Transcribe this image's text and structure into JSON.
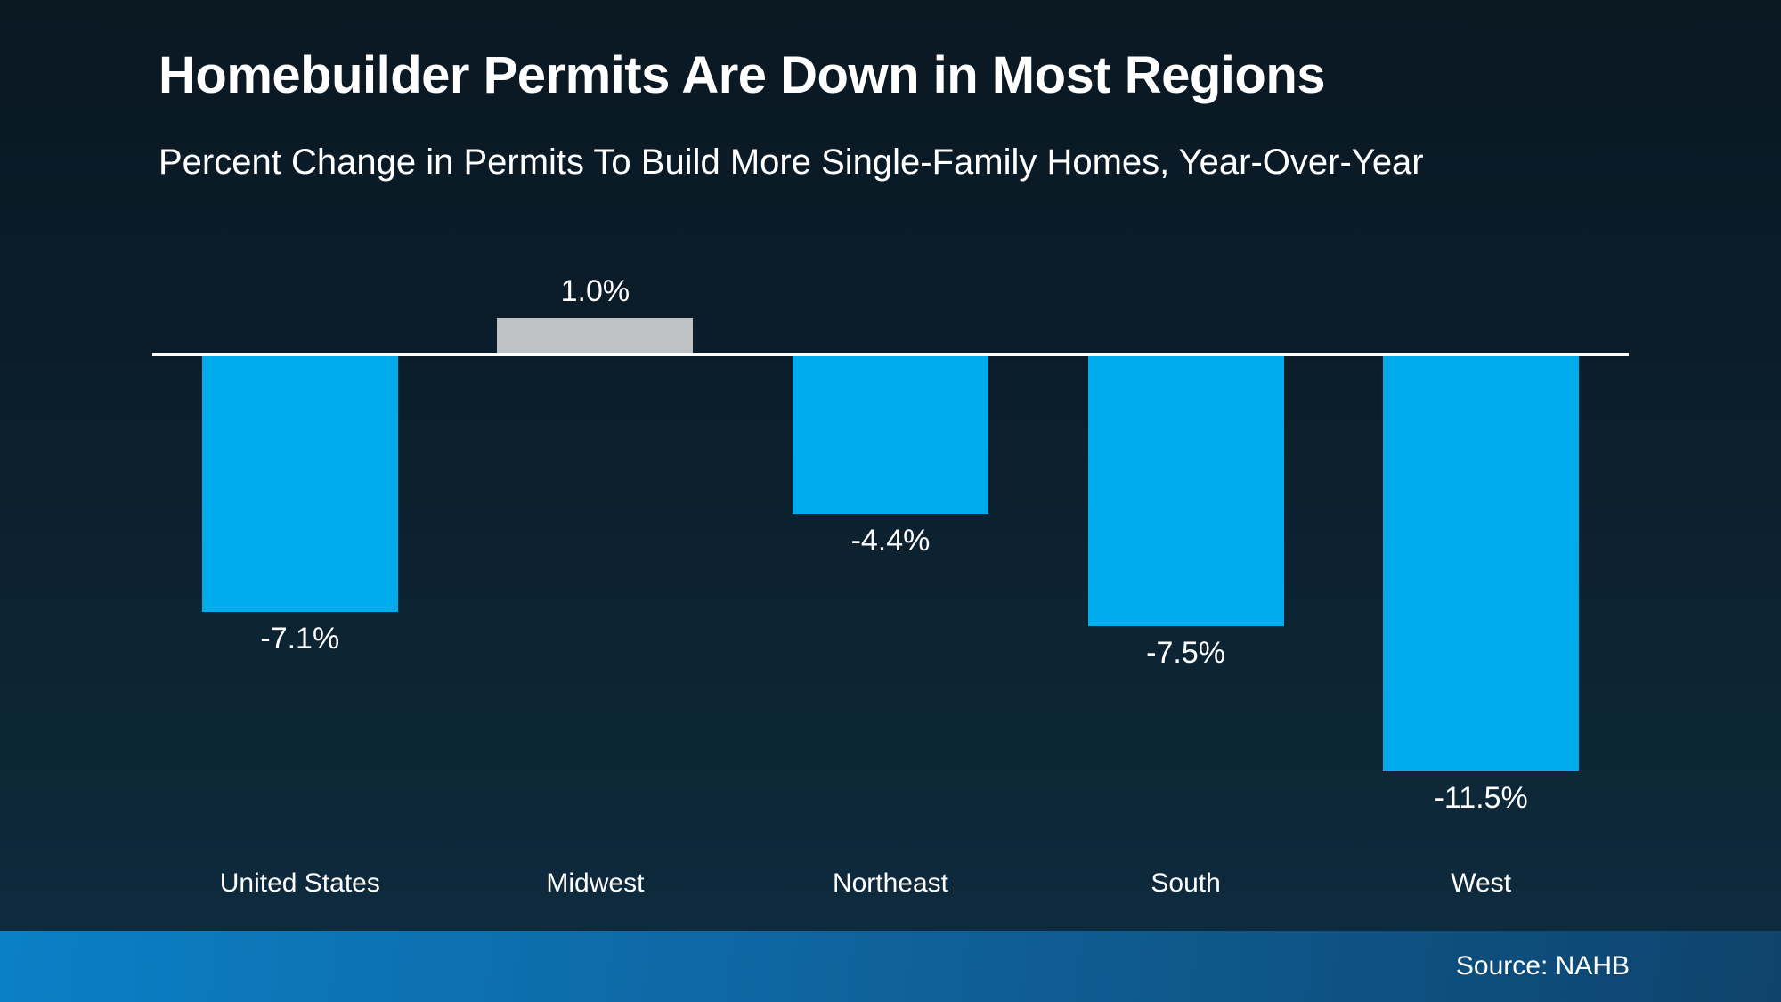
{
  "header": {
    "title": "Homebuilder Permits Are Down in Most Regions",
    "subtitle": "Percent Change in Permits To Build More Single-Family Homes, Year-Over-Year"
  },
  "footer": {
    "source_label": "Source: NAHB"
  },
  "colors": {
    "background_top": "#0A1822",
    "background_bottom": "#0E2C40",
    "bar_negative_blue": "#00ACEC",
    "bar_positive_gray": "#BFC3C5",
    "baseline_white": "#FFFFFF",
    "footer_gradient_left": "#0A80C6",
    "footer_gradient_right": "#0E436C",
    "text": "#FFFFFF"
  },
  "chart_data": {
    "type": "bar",
    "title": "Homebuilder Permits Are Down in Most Regions",
    "subtitle": "Percent Change in Permits To Build More Single-Family Homes, Year-Over-Year",
    "categories": [
      "United States",
      "Midwest",
      "Northeast",
      "South",
      "West"
    ],
    "values": [
      -7.1,
      1.0,
      -4.4,
      -7.5,
      -11.5
    ],
    "value_labels": [
      "-7.1%",
      "1.0%",
      "-4.4%",
      "-7.5%",
      "-11.5%"
    ],
    "bar_colors": [
      "#00ACEC",
      "#BFC3C5",
      "#00ACEC",
      "#00ACEC",
      "#00ACEC"
    ],
    "ylim": [
      -12.5,
      2.0
    ],
    "ylabel": "",
    "xlabel": "",
    "grid": false,
    "legend": false,
    "baseline_value": 0
  }
}
